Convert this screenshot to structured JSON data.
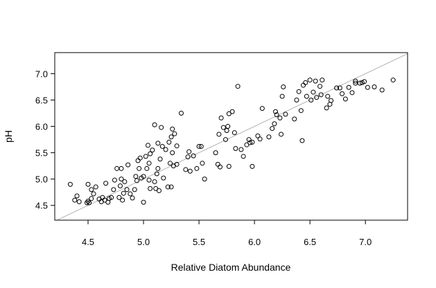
{
  "chart_data": {
    "type": "scatter",
    "title": "",
    "xlabel": "Relative Diatom Abundance",
    "ylabel": "pH",
    "xlim": [
      4.2,
      7.38
    ],
    "ylim": [
      4.22,
      7.4
    ],
    "xticks": [
      "4.5",
      "5.0",
      "5.5",
      "6.0",
      "6.5",
      "7.0"
    ],
    "yticks": [
      "4.5",
      "5.0",
      "5.5",
      "6.0",
      "6.5",
      "7.0"
    ],
    "grid": false,
    "legend": "none",
    "reference_line": {
      "type": "identity",
      "slope": 1,
      "intercept": 0,
      "color": "#b3b3b3"
    },
    "marker": {
      "shape": "open-circle",
      "color": "#000000"
    },
    "points": [
      [
        4.34,
        4.9
      ],
      [
        4.38,
        4.6
      ],
      [
        4.4,
        4.68
      ],
      [
        4.42,
        4.57
      ],
      [
        4.49,
        4.55
      ],
      [
        4.5,
        4.58
      ],
      [
        4.5,
        4.9
      ],
      [
        4.51,
        4.55
      ],
      [
        4.53,
        4.63
      ],
      [
        4.53,
        4.8
      ],
      [
        4.55,
        4.72
      ],
      [
        4.57,
        4.85
      ],
      [
        4.6,
        4.62
      ],
      [
        4.62,
        4.57
      ],
      [
        4.63,
        4.65
      ],
      [
        4.65,
        4.6
      ],
      [
        4.66,
        4.92
      ],
      [
        4.68,
        4.56
      ],
      [
        4.69,
        4.63
      ],
      [
        4.71,
        4.65
      ],
      [
        4.73,
        4.8
      ],
      [
        4.74,
        4.98
      ],
      [
        4.76,
        5.2
      ],
      [
        4.78,
        4.65
      ],
      [
        4.79,
        4.87
      ],
      [
        4.8,
        5.0
      ],
      [
        4.8,
        5.2
      ],
      [
        4.81,
        4.6
      ],
      [
        4.82,
        4.73
      ],
      [
        4.83,
        4.95
      ],
      [
        4.85,
        4.8
      ],
      [
        4.86,
        5.27
      ],
      [
        4.88,
        4.72
      ],
      [
        4.9,
        4.64
      ],
      [
        4.92,
        4.8
      ],
      [
        4.93,
        5.05
      ],
      [
        4.94,
        4.97
      ],
      [
        4.95,
        5.35
      ],
      [
        4.96,
        5.2
      ],
      [
        4.97,
        5.4
      ],
      [
        4.98,
        5.02
      ],
      [
        5.0,
        5.05
      ],
      [
        5.0,
        4.56
      ],
      [
        5.02,
        5.43
      ],
      [
        5.03,
        5.2
      ],
      [
        5.04,
        5.64
      ],
      [
        5.05,
        4.98
      ],
      [
        5.05,
        5.3
      ],
      [
        5.06,
        5.48
      ],
      [
        5.06,
        4.82
      ],
      [
        5.08,
        5.55
      ],
      [
        5.1,
        6.03
      ],
      [
        5.1,
        4.95
      ],
      [
        5.11,
        4.82
      ],
      [
        5.12,
        5.1
      ],
      [
        5.13,
        5.68
      ],
      [
        5.13,
        5.2
      ],
      [
        5.14,
        4.78
      ],
      [
        5.15,
        5.38
      ],
      [
        5.16,
        5.98
      ],
      [
        5.17,
        5.62
      ],
      [
        5.18,
        5.02
      ],
      [
        5.2,
        5.56
      ],
      [
        5.22,
        4.85
      ],
      [
        5.23,
        5.7
      ],
      [
        5.24,
        5.3
      ],
      [
        5.25,
        5.8
      ],
      [
        5.25,
        4.85
      ],
      [
        5.26,
        5.5
      ],
      [
        5.26,
        5.95
      ],
      [
        5.27,
        5.25
      ],
      [
        5.28,
        5.86
      ],
      [
        5.3,
        5.63
      ],
      [
        5.3,
        5.28
      ],
      [
        5.34,
        6.25
      ],
      [
        5.38,
        5.18
      ],
      [
        5.4,
        5.42
      ],
      [
        5.41,
        5.52
      ],
      [
        5.42,
        5.15
      ],
      [
        5.45,
        5.44
      ],
      [
        5.48,
        5.2
      ],
      [
        5.5,
        5.62
      ],
      [
        5.52,
        5.62
      ],
      [
        5.53,
        5.3
      ],
      [
        5.55,
        5.0
      ],
      [
        5.65,
        5.5
      ],
      [
        5.67,
        5.28
      ],
      [
        5.68,
        5.85
      ],
      [
        5.69,
        5.23
      ],
      [
        5.7,
        6.16
      ],
      [
        5.72,
        5.98
      ],
      [
        5.74,
        5.75
      ],
      [
        5.75,
        5.92
      ],
      [
        5.76,
        6.0
      ],
      [
        5.77,
        5.24
      ],
      [
        5.77,
        6.24
      ],
      [
        5.8,
        6.28
      ],
      [
        5.82,
        5.88
      ],
      [
        5.83,
        5.58
      ],
      [
        5.85,
        6.76
      ],
      [
        5.88,
        5.56
      ],
      [
        5.9,
        5.43
      ],
      [
        5.93,
        5.65
      ],
      [
        5.95,
        5.75
      ],
      [
        5.96,
        5.69
      ],
      [
        5.98,
        5.7
      ],
      [
        5.98,
        5.24
      ],
      [
        6.03,
        5.82
      ],
      [
        6.05,
        5.76
      ],
      [
        6.07,
        6.34
      ],
      [
        6.13,
        5.8
      ],
      [
        6.16,
        5.96
      ],
      [
        6.18,
        6.05
      ],
      [
        6.19,
        6.28
      ],
      [
        6.2,
        6.22
      ],
      [
        6.23,
        6.16
      ],
      [
        6.24,
        5.85
      ],
      [
        6.25,
        6.57
      ],
      [
        6.26,
        6.75
      ],
      [
        6.28,
        6.23
      ],
      [
        6.36,
        6.14
      ],
      [
        6.38,
        6.5
      ],
      [
        6.4,
        6.66
      ],
      [
        6.42,
        6.3
      ],
      [
        6.43,
        5.73
      ],
      [
        6.44,
        6.78
      ],
      [
        6.46,
        6.83
      ],
      [
        6.47,
        6.57
      ],
      [
        6.5,
        6.88
      ],
      [
        6.51,
        6.5
      ],
      [
        6.53,
        6.65
      ],
      [
        6.55,
        6.86
      ],
      [
        6.56,
        6.55
      ],
      [
        6.59,
        6.76
      ],
      [
        6.6,
        6.6
      ],
      [
        6.61,
        6.88
      ],
      [
        6.65,
        6.35
      ],
      [
        6.66,
        6.57
      ],
      [
        6.68,
        6.42
      ],
      [
        6.69,
        6.49
      ],
      [
        6.74,
        6.73
      ],
      [
        6.77,
        6.73
      ],
      [
        6.79,
        6.62
      ],
      [
        6.82,
        6.52
      ],
      [
        6.85,
        6.74
      ],
      [
        6.88,
        6.64
      ],
      [
        6.91,
        6.82
      ],
      [
        6.91,
        6.86
      ],
      [
        6.95,
        6.82
      ],
      [
        6.97,
        6.83
      ],
      [
        6.99,
        6.85
      ],
      [
        7.02,
        6.74
      ],
      [
        7.08,
        6.75
      ],
      [
        7.15,
        6.69
      ],
      [
        7.25,
        6.88
      ]
    ]
  }
}
